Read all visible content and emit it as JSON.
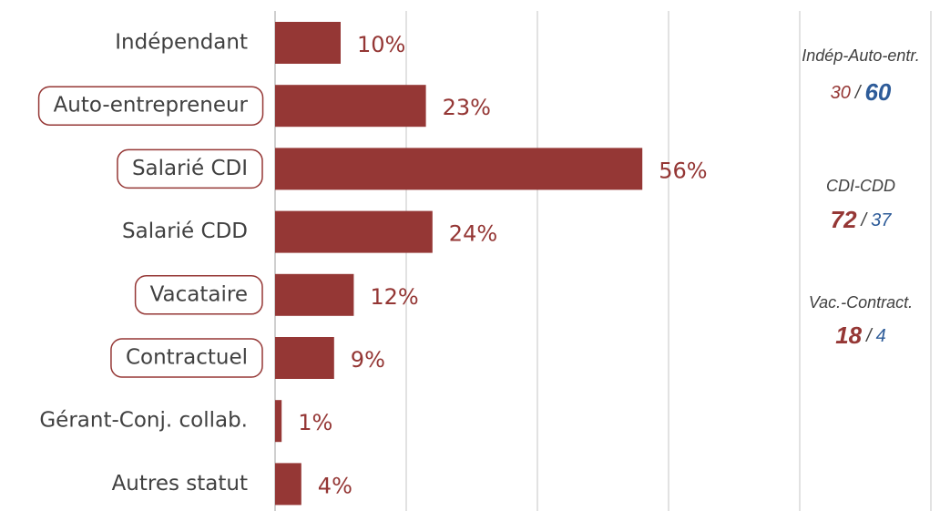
{
  "chart_data": {
    "type": "bar",
    "orientation": "horizontal",
    "categories": [
      "Indépendant",
      "Auto-entrepreneur",
      "Salarié CDI",
      "Salarié CDD",
      "Vacataire",
      "Contractuel",
      "Gérant-Conj. collab.",
      "Autres statut"
    ],
    "values": [
      10,
      23,
      56,
      24,
      12,
      9,
      1,
      4
    ],
    "value_labels": [
      "10%",
      "23%",
      "56%",
      "24%",
      "12%",
      "9%",
      "1%",
      "4%"
    ],
    "highlight": [
      false,
      true,
      true,
      false,
      true,
      true,
      false,
      false
    ],
    "color": "#953735",
    "xlim": [
      0,
      100
    ],
    "xticks": [
      0,
      20,
      40,
      60,
      80,
      100
    ],
    "grid": true,
    "annotations": [
      {
        "title": "Indép-Auto-entr.",
        "values": [
          30,
          60
        ],
        "separator": "/"
      },
      {
        "title": "CDI-CDD",
        "values": [
          72,
          37
        ],
        "separator": "/"
      },
      {
        "title": "Vac.-Contract.",
        "values": [
          18,
          4
        ],
        "separator": "/"
      }
    ],
    "annotation_colors": [
      "#953735",
      "#2e5c99"
    ]
  }
}
